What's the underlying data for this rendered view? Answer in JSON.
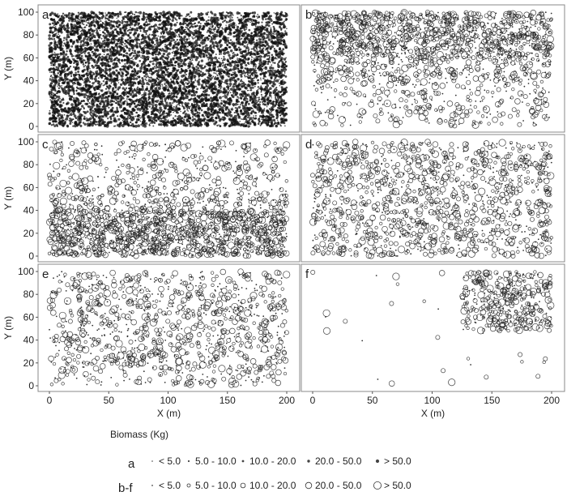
{
  "chart_data": {
    "type": "scatter",
    "x_axis": {
      "label": "X (m)",
      "range": [
        0,
        200
      ],
      "ticks": [
        0,
        50,
        100,
        150,
        200
      ]
    },
    "y_axis": {
      "label": "Y (m)",
      "range": [
        0,
        100
      ],
      "ticks": [
        0,
        20,
        40,
        60,
        80,
        100
      ]
    },
    "panels": [
      {
        "id": "a",
        "letter": "a",
        "point_count": 7000,
        "density_note": "very dense, uniform across plot"
      },
      {
        "id": "b",
        "letter": "b",
        "point_count": 1700,
        "density_note": "dense at Y 60-100, sparser below"
      },
      {
        "id": "c",
        "letter": "c",
        "point_count": 1900,
        "density_note": "dense at Y 0-40, sparser above"
      },
      {
        "id": "d",
        "letter": "d",
        "point_count": 1300,
        "density_note": "moderately uniform"
      },
      {
        "id": "e",
        "letter": "e",
        "point_count": 1100,
        "density_note": "moderately uniform, sparser near bottom"
      },
      {
        "id": "f",
        "letter": "f",
        "point_count": 420,
        "density_note": "concentrated at X 130-200, Y 50-100"
      }
    ],
    "legend": {
      "title": "Biomass (Kg)",
      "rows": [
        {
          "key": "a",
          "classes": [
            "< 5.0",
            "5.0 - 10.0",
            "10.0 - 20.0",
            "20.0 - 50.0",
            "> 50.0"
          ]
        },
        {
          "key": "b-f",
          "classes": [
            "< 5.0",
            "5.0 - 10.0",
            "10.0 - 20.0",
            "20.0 - 50.0",
            "> 50.0"
          ]
        }
      ]
    },
    "grid": false
  }
}
